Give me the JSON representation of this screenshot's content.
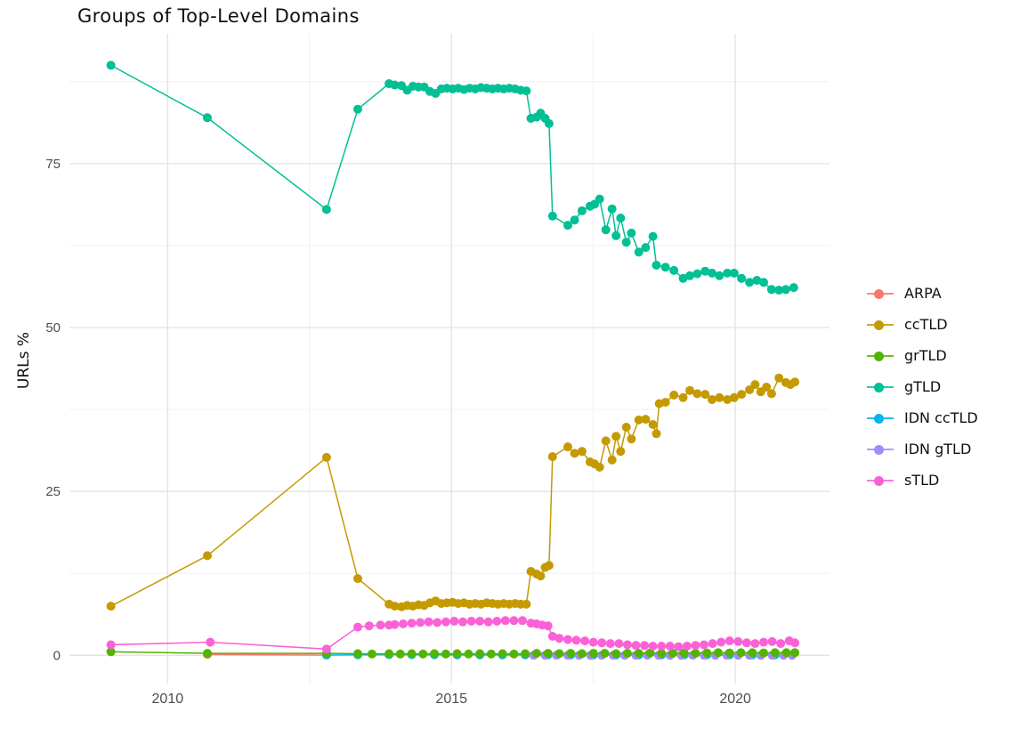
{
  "title": "Groups of Top-Level Domains",
  "colors": {
    "grid_major": "#e3e3e3",
    "grid_minor": "#f0f0f0",
    "axis_text": "#4d4d4d",
    "title_text": "#111111"
  },
  "legend": {
    "position": "right",
    "items": [
      {
        "label": "ARPA",
        "color": "#F8766D"
      },
      {
        "label": "ccTLD",
        "color": "#C49A00"
      },
      {
        "label": "grTLD",
        "color": "#53B400"
      },
      {
        "label": "gTLD",
        "color": "#00C094"
      },
      {
        "label": "IDN ccTLD",
        "color": "#00B6EB"
      },
      {
        "label": "IDN gTLD",
        "color": "#A58AFF"
      },
      {
        "label": "sTLD",
        "color": "#FB61D7"
      }
    ]
  },
  "chart_data": {
    "type": "line",
    "title": "Groups of Top-Level Domains",
    "xlabel": "",
    "ylabel": "URLs %",
    "grid": true,
    "legend_position": "right",
    "x_ticks": [
      2010,
      2015,
      2020
    ],
    "x_minor_ticks": [
      2012.5,
      2017.5
    ],
    "y_ticks": [
      0,
      25,
      50,
      75
    ],
    "y_minor_ticks": [
      12.5,
      37.5,
      62.5,
      87.5
    ],
    "xlim": [
      2008.27,
      2021.66
    ],
    "ylim": [
      -4.3,
      94.8
    ],
    "series": [
      {
        "name": "ARPA",
        "color": "#F8766D",
        "z": 1,
        "points": [
          [
            2010.7,
            0.12
          ],
          [
            2012.8,
            0.05
          ]
        ]
      },
      {
        "name": "IDN ccTLD",
        "color": "#00B6EB",
        "z": 2,
        "points": [
          [
            2012.8,
            0.05
          ],
          [
            2013.35,
            0.08
          ],
          [
            2013.9,
            0.1
          ],
          [
            2014.3,
            0.1
          ],
          [
            2014.7,
            0.08
          ],
          [
            2015.1,
            0.06
          ],
          [
            2015.5,
            0.06
          ],
          [
            2015.9,
            0.06
          ],
          [
            2016.3,
            0.06
          ],
          [
            2016.7,
            0.06
          ],
          [
            2017.1,
            0.06
          ],
          [
            2017.5,
            0.06
          ],
          [
            2017.9,
            0.06
          ],
          [
            2018.3,
            0.06
          ],
          [
            2018.7,
            0.06
          ],
          [
            2019.1,
            0.06
          ],
          [
            2019.5,
            0.06
          ],
          [
            2019.9,
            0.06
          ],
          [
            2020.3,
            0.06
          ],
          [
            2020.7,
            0.06
          ],
          [
            2021.0,
            0.06
          ]
        ]
      },
      {
        "name": "IDN gTLD",
        "color": "#A58AFF",
        "z": 3,
        "points": [
          [
            2016.45,
            0.0
          ],
          [
            2016.65,
            0.0
          ],
          [
            2016.85,
            0.0
          ],
          [
            2017.05,
            0.0
          ],
          [
            2017.25,
            0.0
          ],
          [
            2017.45,
            0.0
          ],
          [
            2017.65,
            0.0
          ],
          [
            2017.85,
            0.0
          ],
          [
            2018.05,
            0.0
          ],
          [
            2018.25,
            0.0
          ],
          [
            2018.45,
            0.0
          ],
          [
            2018.65,
            0.0
          ],
          [
            2018.85,
            0.0
          ],
          [
            2019.05,
            0.0
          ],
          [
            2019.25,
            0.0
          ],
          [
            2019.45,
            0.0
          ],
          [
            2019.65,
            0.0
          ],
          [
            2019.85,
            0.0
          ],
          [
            2020.05,
            0.0
          ],
          [
            2020.25,
            0.0
          ],
          [
            2020.45,
            0.0
          ],
          [
            2020.65,
            0.0
          ],
          [
            2020.85,
            0.0
          ],
          [
            2021.0,
            0.0
          ]
        ]
      },
      {
        "name": "grTLD",
        "color": "#53B400",
        "z": 4,
        "points": [
          [
            2009.0,
            0.55
          ],
          [
            2010.7,
            0.3
          ],
          [
            2012.8,
            0.3
          ],
          [
            2013.35,
            0.25
          ],
          [
            2013.6,
            0.2
          ],
          [
            2013.9,
            0.25
          ],
          [
            2014.1,
            0.2
          ],
          [
            2014.3,
            0.25
          ],
          [
            2014.5,
            0.2
          ],
          [
            2014.7,
            0.25
          ],
          [
            2014.9,
            0.2
          ],
          [
            2015.1,
            0.25
          ],
          [
            2015.3,
            0.2
          ],
          [
            2015.5,
            0.25
          ],
          [
            2015.7,
            0.2
          ],
          [
            2015.9,
            0.25
          ],
          [
            2016.1,
            0.2
          ],
          [
            2016.3,
            0.25
          ],
          [
            2016.5,
            0.3
          ],
          [
            2016.7,
            0.3
          ],
          [
            2016.9,
            0.25
          ],
          [
            2017.1,
            0.3
          ],
          [
            2017.3,
            0.25
          ],
          [
            2017.5,
            0.3
          ],
          [
            2017.7,
            0.3
          ],
          [
            2017.9,
            0.25
          ],
          [
            2018.1,
            0.3
          ],
          [
            2018.3,
            0.3
          ],
          [
            2018.5,
            0.35
          ],
          [
            2018.7,
            0.3
          ],
          [
            2018.9,
            0.3
          ],
          [
            2019.1,
            0.35
          ],
          [
            2019.3,
            0.3
          ],
          [
            2019.5,
            0.35
          ],
          [
            2019.7,
            0.4
          ],
          [
            2019.9,
            0.35
          ],
          [
            2020.1,
            0.4
          ],
          [
            2020.3,
            0.4
          ],
          [
            2020.5,
            0.35
          ],
          [
            2020.7,
            0.4
          ],
          [
            2020.9,
            0.4
          ],
          [
            2021.05,
            0.4
          ]
        ]
      },
      {
        "name": "ccTLD",
        "color": "#C49A00",
        "z": 5,
        "points": [
          [
            2009.0,
            7.5
          ],
          [
            2010.7,
            15.2
          ],
          [
            2012.8,
            30.2
          ],
          [
            2013.35,
            11.7
          ],
          [
            2013.9,
            7.8
          ],
          [
            2014.0,
            7.5
          ],
          [
            2014.12,
            7.4
          ],
          [
            2014.22,
            7.6
          ],
          [
            2014.32,
            7.5
          ],
          [
            2014.42,
            7.7
          ],
          [
            2014.52,
            7.6
          ],
          [
            2014.62,
            8.0
          ],
          [
            2014.72,
            8.3
          ],
          [
            2014.82,
            7.9
          ],
          [
            2014.92,
            8.0
          ],
          [
            2015.02,
            8.1
          ],
          [
            2015.12,
            7.9
          ],
          [
            2015.22,
            8.0
          ],
          [
            2015.32,
            7.8
          ],
          [
            2015.42,
            7.9
          ],
          [
            2015.52,
            7.8
          ],
          [
            2015.62,
            8.0
          ],
          [
            2015.72,
            7.9
          ],
          [
            2015.82,
            7.8
          ],
          [
            2015.92,
            7.9
          ],
          [
            2016.02,
            7.8
          ],
          [
            2016.12,
            7.9
          ],
          [
            2016.22,
            7.8
          ],
          [
            2016.32,
            7.8
          ],
          [
            2016.4,
            12.8
          ],
          [
            2016.5,
            12.4
          ],
          [
            2016.57,
            12.1
          ],
          [
            2016.65,
            13.4
          ],
          [
            2016.72,
            13.7
          ],
          [
            2016.78,
            30.3
          ],
          [
            2017.05,
            31.8
          ],
          [
            2017.17,
            30.8
          ],
          [
            2017.3,
            31.1
          ],
          [
            2017.44,
            29.5
          ],
          [
            2017.52,
            29.2
          ],
          [
            2017.61,
            28.7
          ],
          [
            2017.72,
            32.7
          ],
          [
            2017.83,
            29.8
          ],
          [
            2017.9,
            33.4
          ],
          [
            2017.98,
            31.1
          ],
          [
            2018.08,
            34.8
          ],
          [
            2018.17,
            33.0
          ],
          [
            2018.3,
            35.9
          ],
          [
            2018.42,
            36.0
          ],
          [
            2018.55,
            35.2
          ],
          [
            2018.61,
            33.8
          ],
          [
            2018.66,
            38.4
          ],
          [
            2018.77,
            38.6
          ],
          [
            2018.92,
            39.7
          ],
          [
            2019.08,
            39.3
          ],
          [
            2019.2,
            40.4
          ],
          [
            2019.33,
            39.9
          ],
          [
            2019.47,
            39.8
          ],
          [
            2019.59,
            39.0
          ],
          [
            2019.72,
            39.3
          ],
          [
            2019.86,
            39.0
          ],
          [
            2019.98,
            39.3
          ],
          [
            2020.11,
            39.8
          ],
          [
            2020.25,
            40.5
          ],
          [
            2020.35,
            41.3
          ],
          [
            2020.45,
            40.2
          ],
          [
            2020.55,
            40.9
          ],
          [
            2020.64,
            39.9
          ],
          [
            2020.77,
            42.3
          ],
          [
            2020.89,
            41.6
          ],
          [
            2020.97,
            41.3
          ],
          [
            2021.05,
            41.7
          ]
        ]
      },
      {
        "name": "gTLD",
        "color": "#00C094",
        "z": 6,
        "points": [
          [
            2009.0,
            90.0
          ],
          [
            2010.7,
            82.0
          ],
          [
            2012.8,
            68.0
          ],
          [
            2013.35,
            83.3
          ],
          [
            2013.9,
            87.2
          ],
          [
            2014.0,
            87.0
          ],
          [
            2014.12,
            86.9
          ],
          [
            2014.22,
            86.2
          ],
          [
            2014.32,
            86.8
          ],
          [
            2014.42,
            86.7
          ],
          [
            2014.52,
            86.7
          ],
          [
            2014.62,
            86.0
          ],
          [
            2014.72,
            85.7
          ],
          [
            2014.82,
            86.4
          ],
          [
            2014.92,
            86.5
          ],
          [
            2015.02,
            86.4
          ],
          [
            2015.12,
            86.5
          ],
          [
            2015.22,
            86.3
          ],
          [
            2015.32,
            86.5
          ],
          [
            2015.42,
            86.4
          ],
          [
            2015.52,
            86.6
          ],
          [
            2015.62,
            86.5
          ],
          [
            2015.72,
            86.4
          ],
          [
            2015.82,
            86.5
          ],
          [
            2015.92,
            86.4
          ],
          [
            2016.02,
            86.5
          ],
          [
            2016.12,
            86.4
          ],
          [
            2016.22,
            86.2
          ],
          [
            2016.32,
            86.1
          ],
          [
            2016.4,
            81.9
          ],
          [
            2016.5,
            82.1
          ],
          [
            2016.57,
            82.7
          ],
          [
            2016.65,
            81.9
          ],
          [
            2016.72,
            81.1
          ],
          [
            2016.78,
            67.0
          ],
          [
            2017.05,
            65.6
          ],
          [
            2017.17,
            66.4
          ],
          [
            2017.3,
            67.8
          ],
          [
            2017.44,
            68.5
          ],
          [
            2017.52,
            68.8
          ],
          [
            2017.61,
            69.6
          ],
          [
            2017.72,
            64.9
          ],
          [
            2017.83,
            68.1
          ],
          [
            2017.9,
            64.0
          ],
          [
            2017.98,
            66.7
          ],
          [
            2018.08,
            63.0
          ],
          [
            2018.17,
            64.4
          ],
          [
            2018.3,
            61.5
          ],
          [
            2018.42,
            62.2
          ],
          [
            2018.55,
            63.9
          ],
          [
            2018.61,
            59.5
          ],
          [
            2018.77,
            59.2
          ],
          [
            2018.92,
            58.7
          ],
          [
            2019.08,
            57.5
          ],
          [
            2019.2,
            57.9
          ],
          [
            2019.33,
            58.2
          ],
          [
            2019.47,
            58.6
          ],
          [
            2019.59,
            58.3
          ],
          [
            2019.72,
            57.9
          ],
          [
            2019.86,
            58.3
          ],
          [
            2019.98,
            58.3
          ],
          [
            2020.11,
            57.5
          ],
          [
            2020.25,
            56.9
          ],
          [
            2020.38,
            57.2
          ],
          [
            2020.5,
            56.9
          ],
          [
            2020.64,
            55.8
          ],
          [
            2020.77,
            55.7
          ],
          [
            2020.89,
            55.8
          ],
          [
            2021.03,
            56.1
          ]
        ]
      },
      {
        "name": "sTLD",
        "color": "#FB61D7",
        "z": 7,
        "points": [
          [
            2009.0,
            1.6
          ],
          [
            2010.75,
            2.0
          ],
          [
            2012.8,
            0.95
          ],
          [
            2013.35,
            4.3
          ],
          [
            2013.55,
            4.5
          ],
          [
            2013.75,
            4.6
          ],
          [
            2013.9,
            4.6
          ],
          [
            2014.0,
            4.7
          ],
          [
            2014.15,
            4.8
          ],
          [
            2014.3,
            4.9
          ],
          [
            2014.45,
            5.0
          ],
          [
            2014.6,
            5.1
          ],
          [
            2014.75,
            5.0
          ],
          [
            2014.9,
            5.1
          ],
          [
            2015.05,
            5.2
          ],
          [
            2015.2,
            5.1
          ],
          [
            2015.35,
            5.2
          ],
          [
            2015.5,
            5.2
          ],
          [
            2015.65,
            5.1
          ],
          [
            2015.8,
            5.2
          ],
          [
            2015.95,
            5.3
          ],
          [
            2016.1,
            5.3
          ],
          [
            2016.25,
            5.3
          ],
          [
            2016.4,
            4.9
          ],
          [
            2016.5,
            4.8
          ],
          [
            2016.6,
            4.6
          ],
          [
            2016.7,
            4.5
          ],
          [
            2016.78,
            2.9
          ],
          [
            2016.9,
            2.6
          ],
          [
            2017.05,
            2.4
          ],
          [
            2017.2,
            2.3
          ],
          [
            2017.35,
            2.2
          ],
          [
            2017.5,
            2.0
          ],
          [
            2017.65,
            1.9
          ],
          [
            2017.8,
            1.8
          ],
          [
            2017.95,
            1.8
          ],
          [
            2018.1,
            1.6
          ],
          [
            2018.25,
            1.5
          ],
          [
            2018.4,
            1.5
          ],
          [
            2018.55,
            1.4
          ],
          [
            2018.7,
            1.4
          ],
          [
            2018.85,
            1.4
          ],
          [
            2019.0,
            1.3
          ],
          [
            2019.15,
            1.4
          ],
          [
            2019.3,
            1.5
          ],
          [
            2019.45,
            1.6
          ],
          [
            2019.6,
            1.8
          ],
          [
            2019.75,
            2.0
          ],
          [
            2019.9,
            2.2
          ],
          [
            2020.05,
            2.1
          ],
          [
            2020.2,
            1.9
          ],
          [
            2020.35,
            1.8
          ],
          [
            2020.5,
            2.0
          ],
          [
            2020.65,
            2.1
          ],
          [
            2020.8,
            1.8
          ],
          [
            2020.95,
            2.2
          ],
          [
            2021.05,
            1.9
          ]
        ]
      }
    ]
  }
}
